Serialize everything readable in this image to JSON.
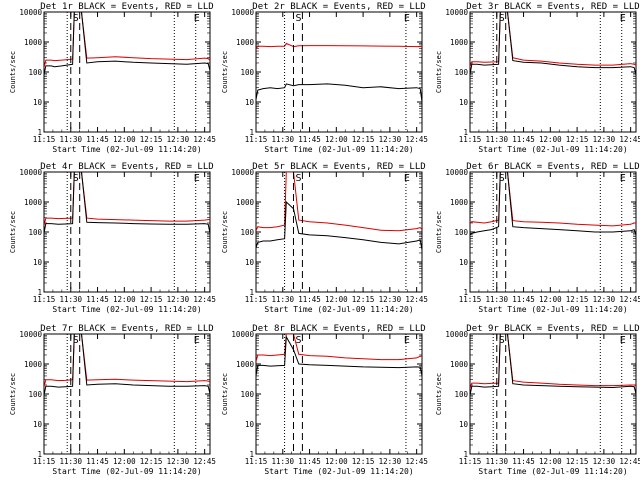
{
  "common": {
    "y_label": "Counts/sec",
    "x_label": "Start Time (02-Jul-09 11:14:20)",
    "x_ticks": [
      "11:15",
      "11:30",
      "11:45",
      "12:00",
      "12:15",
      "12:30",
      "12:45"
    ],
    "y_ticks": [
      "1",
      "10",
      "100",
      "1000",
      "10000"
    ],
    "marker_s": "S",
    "marker_e": "E"
  },
  "colors": {
    "events": "#000000",
    "lld": "#dd0000"
  },
  "chart_data": [
    {
      "type": "line",
      "title": "Det 1r BLACK = Events, RED = LLD",
      "x_unit": "minutes after 11:15",
      "ylim": [
        1,
        10000
      ],
      "yscale": "log",
      "grid": false,
      "events_level": 200,
      "lld_level": 280,
      "peak": 10000,
      "series": [
        {
          "name": "Events",
          "x": [
            0,
            1,
            4,
            6,
            10,
            16,
            17,
            21,
            24,
            30,
            40,
            50,
            60,
            70,
            80,
            90,
            92,
            93
          ],
          "y": [
            80,
            160,
            160,
            150,
            160,
            180,
            10000,
            10000,
            200,
            220,
            230,
            210,
            200,
            190,
            180,
            200,
            190,
            110
          ]
        },
        {
          "name": "LLD",
          "x": [
            0,
            1,
            4,
            6,
            10,
            16,
            17,
            21,
            24,
            30,
            40,
            50,
            60,
            70,
            80,
            90,
            92,
            93
          ],
          "y": [
            140,
            250,
            250,
            240,
            250,
            270,
            10000,
            10000,
            290,
            300,
            320,
            300,
            280,
            270,
            260,
            290,
            280,
            240
          ]
        }
      ],
      "dashed_x": [
        15,
        20
      ],
      "dotted_x": [
        13,
        73,
        85
      ]
    },
    {
      "type": "line",
      "title": "Det 2r BLACK = Events, RED = LLD",
      "x_unit": "minutes after 11:15",
      "ylim": [
        1,
        10000
      ],
      "yscale": "log",
      "grid": false,
      "series": [
        {
          "name": "Events",
          "x": [
            0,
            1,
            4,
            8,
            12,
            16,
            17,
            21,
            24,
            30,
            40,
            50,
            60,
            70,
            80,
            90,
            92,
            93
          ],
          "y": [
            12,
            25,
            28,
            30,
            28,
            30,
            40,
            35,
            38,
            38,
            40,
            36,
            30,
            32,
            28,
            30,
            28,
            10
          ]
        },
        {
          "name": "LLD",
          "x": [
            0,
            1,
            4,
            8,
            12,
            16,
            17,
            21,
            24,
            30,
            40,
            50,
            60,
            70,
            80,
            90,
            92,
            93
          ],
          "y": [
            600,
            720,
            720,
            700,
            720,
            720,
            900,
            700,
            750,
            760,
            760,
            750,
            740,
            730,
            720,
            700,
            710,
            700
          ]
        }
      ],
      "dashed_x": [
        21,
        26
      ],
      "dotted_x": [
        16,
        84
      ]
    },
    {
      "type": "line",
      "title": "Det 3r BLACK = Events, RED = LLD",
      "x_unit": "minutes after 11:15",
      "ylim": [
        1,
        10000
      ],
      "yscale": "log",
      "grid": false,
      "series": [
        {
          "name": "Events",
          "x": [
            0,
            1,
            4,
            8,
            12,
            16,
            17,
            21,
            24,
            30,
            40,
            50,
            60,
            70,
            80,
            90,
            92,
            93
          ],
          "y": [
            80,
            180,
            180,
            170,
            175,
            180,
            10000,
            10000,
            240,
            210,
            200,
            170,
            150,
            140,
            140,
            150,
            140,
            80
          ]
        },
        {
          "name": "LLD",
          "x": [
            0,
            1,
            4,
            8,
            12,
            16,
            17,
            21,
            24,
            30,
            40,
            50,
            60,
            70,
            80,
            90,
            92,
            93
          ],
          "y": [
            150,
            220,
            220,
            210,
            215,
            220,
            10000,
            10000,
            300,
            250,
            230,
            200,
            180,
            170,
            170,
            190,
            180,
            170
          ]
        }
      ],
      "dashed_x": [
        15,
        20
      ],
      "dotted_x": [
        13,
        73,
        85
      ]
    },
    {
      "type": "line",
      "title": "Det 4r BLACK = Events, RED = LLD",
      "x_unit": "minutes after 11:15",
      "ylim": [
        1,
        10000
      ],
      "yscale": "log",
      "grid": false,
      "series": [
        {
          "name": "Events",
          "x": [
            0,
            1,
            4,
            8,
            12,
            16,
            17,
            21,
            24,
            30,
            40,
            50,
            60,
            70,
            80,
            90,
            92,
            93
          ],
          "y": [
            90,
            190,
            190,
            180,
            185,
            190,
            10000,
            10000,
            210,
            205,
            200,
            190,
            185,
            180,
            180,
            190,
            180,
            90
          ]
        },
        {
          "name": "LLD",
          "x": [
            0,
            1,
            4,
            8,
            12,
            16,
            17,
            21,
            24,
            30,
            40,
            50,
            60,
            70,
            80,
            90,
            92,
            93
          ],
          "y": [
            160,
            290,
            290,
            280,
            285,
            290,
            10000,
            10000,
            290,
            270,
            260,
            250,
            240,
            230,
            230,
            250,
            260,
            260
          ]
        }
      ],
      "dashed_x": [
        15,
        20
      ],
      "dotted_x": [
        13,
        73,
        85
      ]
    },
    {
      "type": "line",
      "title": "Det 5r BLACK = Events, RED = LLD",
      "x_unit": "minutes after 11:15",
      "ylim": [
        1,
        10000
      ],
      "yscale": "log",
      "grid": false,
      "series": [
        {
          "name": "Events",
          "x": [
            0,
            1,
            4,
            8,
            12,
            16,
            17,
            21,
            24,
            30,
            40,
            50,
            60,
            70,
            80,
            90,
            92,
            93
          ],
          "y": [
            30,
            45,
            50,
            50,
            55,
            60,
            1000,
            600,
            90,
            80,
            75,
            65,
            55,
            45,
            40,
            50,
            55,
            25
          ]
        },
        {
          "name": "LLD",
          "x": [
            0,
            1,
            4,
            8,
            12,
            16,
            17,
            21,
            24,
            30,
            40,
            50,
            60,
            70,
            80,
            90,
            92,
            93
          ],
          "y": [
            110,
            150,
            140,
            140,
            150,
            170,
            10000,
            10000,
            250,
            220,
            200,
            170,
            140,
            115,
            110,
            130,
            140,
            120
          ]
        }
      ],
      "dashed_x": [
        21,
        26
      ],
      "dotted_x": [
        16,
        84
      ]
    },
    {
      "type": "line",
      "title": "Det 6r BLACK = Events, RED = LLD",
      "x_unit": "minutes after 11:15",
      "ylim": [
        1,
        10000
      ],
      "yscale": "log",
      "grid": false,
      "series": [
        {
          "name": "Events",
          "x": [
            0,
            1,
            4,
            8,
            12,
            16,
            17,
            21,
            24,
            30,
            40,
            50,
            60,
            70,
            80,
            90,
            92,
            93
          ],
          "y": [
            80,
            90,
            100,
            110,
            120,
            150,
            10000,
            10000,
            150,
            140,
            130,
            120,
            110,
            100,
            100,
            110,
            120,
            80
          ]
        },
        {
          "name": "LLD",
          "x": [
            0,
            1,
            4,
            8,
            12,
            16,
            17,
            21,
            24,
            30,
            40,
            50,
            60,
            70,
            80,
            90,
            92,
            93
          ],
          "y": [
            200,
            220,
            210,
            200,
            220,
            250,
            10000,
            10000,
            240,
            220,
            210,
            200,
            180,
            170,
            160,
            180,
            200,
            200
          ]
        }
      ],
      "dashed_x": [
        15,
        20
      ],
      "dotted_x": [
        13,
        73,
        85
      ]
    },
    {
      "type": "line",
      "title": "Det 7r BLACK = Events, RED = LLD",
      "x_unit": "minutes after 11:15",
      "ylim": [
        1,
        10000
      ],
      "yscale": "log",
      "grid": false,
      "series": [
        {
          "name": "Events",
          "x": [
            0,
            1,
            4,
            8,
            12,
            16,
            17,
            21,
            24,
            30,
            40,
            50,
            60,
            70,
            80,
            90,
            92,
            93
          ],
          "y": [
            90,
            180,
            180,
            170,
            175,
            180,
            10000,
            10000,
            200,
            210,
            220,
            200,
            190,
            180,
            180,
            190,
            180,
            100
          ]
        },
        {
          "name": "LLD",
          "x": [
            0,
            1,
            4,
            8,
            12,
            16,
            17,
            21,
            24,
            30,
            40,
            50,
            60,
            70,
            80,
            90,
            92,
            93
          ],
          "y": [
            170,
            300,
            300,
            280,
            285,
            300,
            10000,
            10000,
            290,
            300,
            310,
            290,
            280,
            270,
            260,
            280,
            270,
            260
          ]
        }
      ],
      "dashed_x": [
        15,
        20
      ],
      "dotted_x": [
        13,
        73,
        85
      ]
    },
    {
      "type": "line",
      "title": "Det 8r BLACK = Events, RED = LLD",
      "x_unit": "minutes after 11:15",
      "ylim": [
        1,
        10000
      ],
      "yscale": "log",
      "grid": false,
      "series": [
        {
          "name": "Events",
          "x": [
            0,
            1,
            4,
            8,
            12,
            16,
            17,
            21,
            24,
            30,
            40,
            50,
            60,
            70,
            80,
            90,
            92,
            93
          ],
          "y": [
            400,
            900,
            900,
            850,
            880,
            900,
            8000,
            3000,
            1000,
            950,
            900,
            850,
            800,
            780,
            760,
            800,
            780,
            400
          ]
        },
        {
          "name": "LLD",
          "x": [
            0,
            1,
            4,
            8,
            12,
            16,
            17,
            21,
            24,
            30,
            40,
            50,
            60,
            70,
            80,
            90,
            92,
            93
          ],
          "y": [
            1200,
            2000,
            2000,
            1900,
            2000,
            2100,
            10000,
            10000,
            2100,
            1900,
            1800,
            1600,
            1500,
            1400,
            1400,
            1600,
            1800,
            1800
          ]
        }
      ],
      "dashed_x": [
        21,
        26
      ],
      "dotted_x": [
        16,
        84
      ]
    },
    {
      "type": "line",
      "title": "Det 9r BLACK = Events, RED = LLD",
      "x_unit": "minutes after 11:15",
      "ylim": [
        1,
        10000
      ],
      "yscale": "log",
      "grid": false,
      "series": [
        {
          "name": "Events",
          "x": [
            0,
            1,
            4,
            8,
            12,
            16,
            17,
            21,
            24,
            30,
            40,
            50,
            60,
            70,
            80,
            90,
            92,
            93
          ],
          "y": [
            90,
            180,
            180,
            170,
            175,
            180,
            10000,
            10000,
            220,
            200,
            190,
            180,
            175,
            170,
            165,
            180,
            175,
            100
          ]
        },
        {
          "name": "LLD",
          "x": [
            0,
            1,
            4,
            8,
            12,
            16,
            17,
            21,
            24,
            30,
            40,
            50,
            60,
            70,
            80,
            90,
            92,
            93
          ],
          "y": [
            150,
            230,
            230,
            220,
            225,
            230,
            10000,
            10000,
            280,
            250,
            230,
            210,
            200,
            190,
            190,
            200,
            200,
            190
          ]
        }
      ],
      "dashed_x": [
        15,
        20
      ],
      "dotted_x": [
        13,
        73,
        85
      ]
    }
  ]
}
